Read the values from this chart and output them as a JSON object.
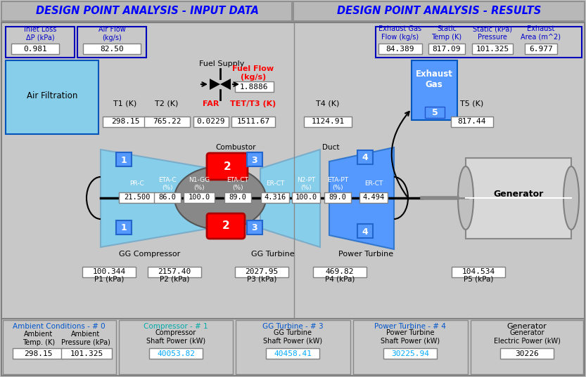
{
  "bg_color": "#c8c8c8",
  "title_left": "DESIGN POINT ANALYSIS - INPUT DATA",
  "title_right": "DESIGN POINT ANALYSIS - RESULTS",
  "title_color": "#0000ff",
  "inlet_loss_label": "Inlet Loss\nΔP (kPa)",
  "inlet_loss_value": "0.981",
  "air_flow_label": "Air Flow\n(kg/s)",
  "air_flow_value": "82.50",
  "exhaust_gas_flow_label": "Exhaust Gas\nFlow (kg/s)",
  "exhaust_gas_flow_value": "84.389",
  "static_temp_label": "Static\nTemp (K)",
  "static_temp_value": "817.09",
  "static_kpa_label": "Static (kPa)\nPressure",
  "static_kpa_value": "101.325",
  "exhaust_area_label": "Exhaust\nArea (m^2)",
  "exhaust_area_value": "6.977",
  "fuel_supply_label": "Fuel Supply",
  "fuel_flow_label": "Fuel Flow\n(kg/s)",
  "fuel_flow_value": "1.8886",
  "T1_label": "T1 (K)",
  "T1_value": "298.15",
  "T2_label": "T2 (K)",
  "T2_value": "765.22",
  "FAR_label": "FAR",
  "FAR_value": "0.0229",
  "TET_T3_label": "TET/T3 (K)",
  "TET_T3_value": "1511.67",
  "T4_label": "T4 (K)",
  "T4_value": "1124.91",
  "T5_label": "T5 (K)",
  "T5_value": "817.44",
  "combustor_label": "Combustor",
  "duct_label": "Duct",
  "PRC_label": "PR-C",
  "ETAC_label": "ETA-C\n(%)",
  "N1GG_label": "N1-GG\n(%)",
  "ETACT_label": "ETA-CT\n(%)",
  "ERCT_label": "ER-CT",
  "N2PT_label": "N2-PT\n(%)",
  "ETAPT_label": "ETA-PT\n(%)",
  "ERCT2_label": "ER-CT",
  "PRC_value": "21.500",
  "ETAC_value": "86.0",
  "N1GG_value": "100.0",
  "ETACT_value": "89.0",
  "ERCT_value": "4.316",
  "N2PT_value": "100.0",
  "ETAPT_value": "89.0",
  "ERCT2_value": "4.494",
  "P1_value": "100.344",
  "P1_label": "P1 (kPa)",
  "P2_value": "2157.40",
  "P2_label": "P2 (kPa)",
  "P3_value": "2027.95",
  "P3_label": "P3 (kPa)",
  "P4_value": "469.82",
  "P4_label": "P4 (kPa)",
  "P5_value": "104.534",
  "P5_label": "P5 (kPa)",
  "gg_compressor_label": "GG Compressor",
  "gg_turbine_label": "GG Turbine",
  "power_turbine_label": "Power Turbine",
  "generator_label": "Generator",
  "air_filtration_label": "Air Filtration",
  "exhaust_gas_label": "Exhaust\nGas",
  "ambient_cond_label": "Ambient Conditions - # 0",
  "compressor_label": "Compressor - # 1",
  "gg_turbine_bot_label": "GG Turbine - # 3",
  "power_turbine_bot_label": "Power Turbine - # 4",
  "generator_bot_label": "Generator",
  "ambient_temp_label": "Ambient\nTemp. (K)",
  "ambient_temp_value": "298.15",
  "ambient_pressure_label": "Ambient\nPressure (kPa)",
  "ambient_pressure_value": "101.325",
  "compressor_shaft_label": "Compressor\nShaft Power (kW)",
  "compressor_shaft_value": "40053.82",
  "gg_turbine_shaft_label": "GG Turbine\nShaft Power (kW)",
  "gg_turbine_shaft_value": "40458.41",
  "power_turbine_shaft_label": "Power Turbine\nShaft Power (kW)",
  "power_turbine_shaft_value": "30225.94",
  "generator_electric_label": "Generator\nElectric Power (kW)",
  "generator_electric_value": "30226"
}
